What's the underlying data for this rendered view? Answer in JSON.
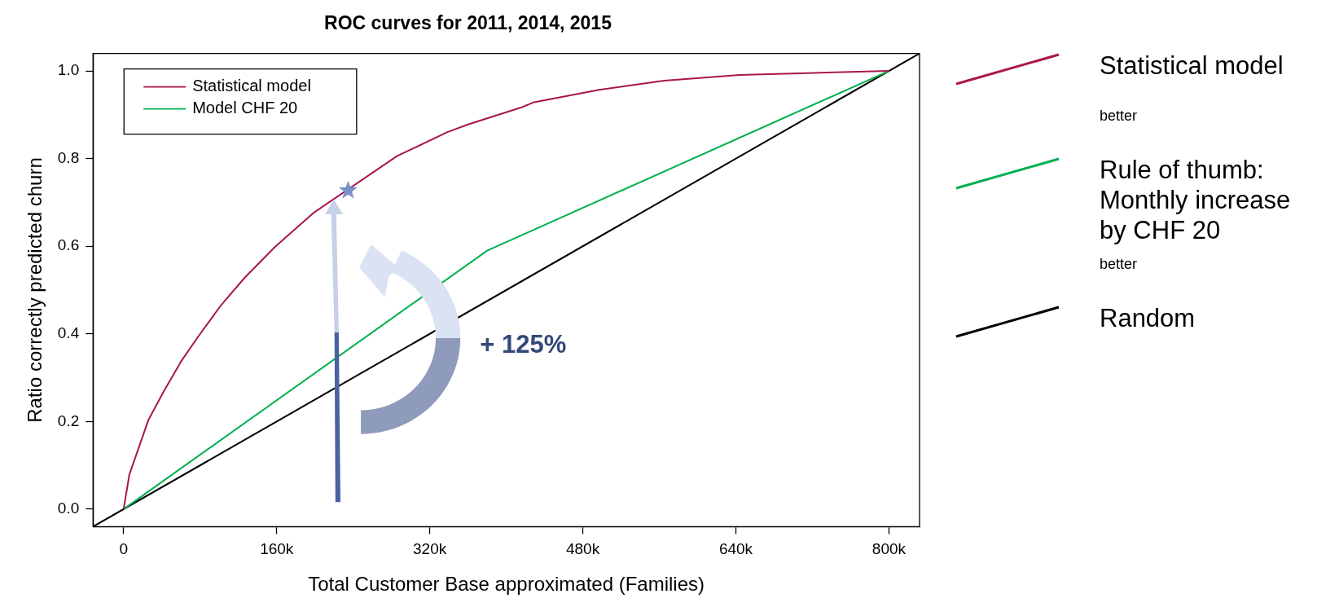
{
  "chart_data": {
    "type": "line",
    "title": "ROC curves for 2011, 2014, 2015",
    "xlabel": "Total Customer Base approximated (Families)",
    "ylabel": "Ratio correctly predicted churn",
    "xlim": [
      -32000,
      832000
    ],
    "ylim": [
      -0.04,
      1.04
    ],
    "xticks": [
      0,
      {
        "value": 160000,
        "label": "160k"
      },
      {
        "value": 320000,
        "label": "320k"
      },
      {
        "value": 480000,
        "label": "480k"
      },
      {
        "value": 640000,
        "label": "640k"
      },
      {
        "value": 800000,
        "label": "800k"
      }
    ],
    "yticks": [
      {
        "value": 0,
        "label": "0.0"
      },
      0.2,
      0.4,
      0.6,
      0.8,
      {
        "value": 1,
        "label": "1.0"
      }
    ],
    "grid": false,
    "legend": "top left",
    "marker": "none",
    "line_style": "solid",
    "series": [
      {
        "name": "Statistical model",
        "color": "#a8174a",
        "x": [
          0,
          6000,
          26000,
          42000,
          60000,
          78000,
          102000,
          126000,
          158000,
          199000,
          286000,
          338000,
          360000,
          416000,
          428000,
          497000,
          565000,
          644000,
          800000
        ],
        "values": [
          0,
          0.079,
          0.204,
          0.269,
          0.337,
          0.394,
          0.466,
          0.527,
          0.598,
          0.677,
          0.806,
          0.86,
          0.878,
          0.917,
          0.928,
          0.957,
          0.978,
          0.991,
          1.0
        ]
      },
      {
        "name": "Model CHF 20",
        "color": "#00b050",
        "x": [
          0,
          380000,
          800000
        ],
        "values": [
          0,
          0.59,
          1.0
        ]
      },
      {
        "color": "#000000",
        "x": [
          -32000,
          832000
        ],
        "values": [
          -0.04,
          1.04
        ]
      }
    ],
    "annotations": [
      "+ 125%",
      "Statistical model",
      "better",
      "Rule of thumb: Monthly increase by CHF 20",
      "better",
      "Random"
    ]
  }
}
